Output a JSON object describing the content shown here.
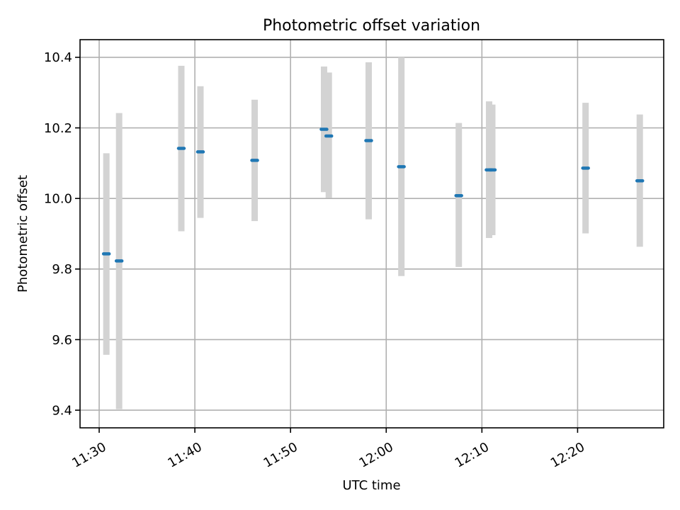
{
  "chart_data": {
    "type": "scatter",
    "title": "Photometric offset variation",
    "xlabel": "UTC time",
    "ylabel": "Photometric offset",
    "grid": true,
    "x_ticks": [
      "11:30",
      "11:40",
      "11:50",
      "12:00",
      "12:10",
      "12:20"
    ],
    "y_ticks": [
      "9.4",
      "9.6",
      "9.8",
      "10.0",
      "10.2",
      "10.4"
    ],
    "xlim": [
      "11:28",
      "12:29"
    ],
    "ylim": [
      9.35,
      10.45
    ],
    "colors": {
      "marker": "#1f77b4",
      "errorbar": "#d3d3d3"
    },
    "series": [
      {
        "points": [
          {
            "x": "11:30:45",
            "y": 9.843,
            "ymin": 9.557,
            "ymax": 10.128
          },
          {
            "x": "11:32:05",
            "y": 9.823,
            "ymin": 9.403,
            "ymax": 10.242
          },
          {
            "x": "11:38:35",
            "y": 10.142,
            "ymin": 9.907,
            "ymax": 10.376
          },
          {
            "x": "11:40:35",
            "y": 10.132,
            "ymin": 9.945,
            "ymax": 10.318
          },
          {
            "x": "11:46:15",
            "y": 10.108,
            "ymin": 9.936,
            "ymax": 10.28
          },
          {
            "x": "11:53:30",
            "y": 10.196,
            "ymin": 10.018,
            "ymax": 10.374
          },
          {
            "x": "11:54:00",
            "y": 10.177,
            "ymin": 10.001,
            "ymax": 10.357
          },
          {
            "x": "11:58:10",
            "y": 10.164,
            "ymin": 9.941,
            "ymax": 10.386
          },
          {
            "x": "12:01:35",
            "y": 10.09,
            "ymin": 9.78,
            "ymax": 10.4
          },
          {
            "x": "12:07:35",
            "y": 10.008,
            "ymin": 9.806,
            "ymax": 10.214
          },
          {
            "x": "12:10:45",
            "y": 10.081,
            "ymin": 9.888,
            "ymax": 10.275
          },
          {
            "x": "12:11:05",
            "y": 10.081,
            "ymin": 9.896,
            "ymax": 10.266
          },
          {
            "x": "12:20:50",
            "y": 10.086,
            "ymin": 9.901,
            "ymax": 10.271
          },
          {
            "x": "12:26:30",
            "y": 10.05,
            "ymin": 9.863,
            "ymax": 10.238
          }
        ]
      }
    ]
  }
}
